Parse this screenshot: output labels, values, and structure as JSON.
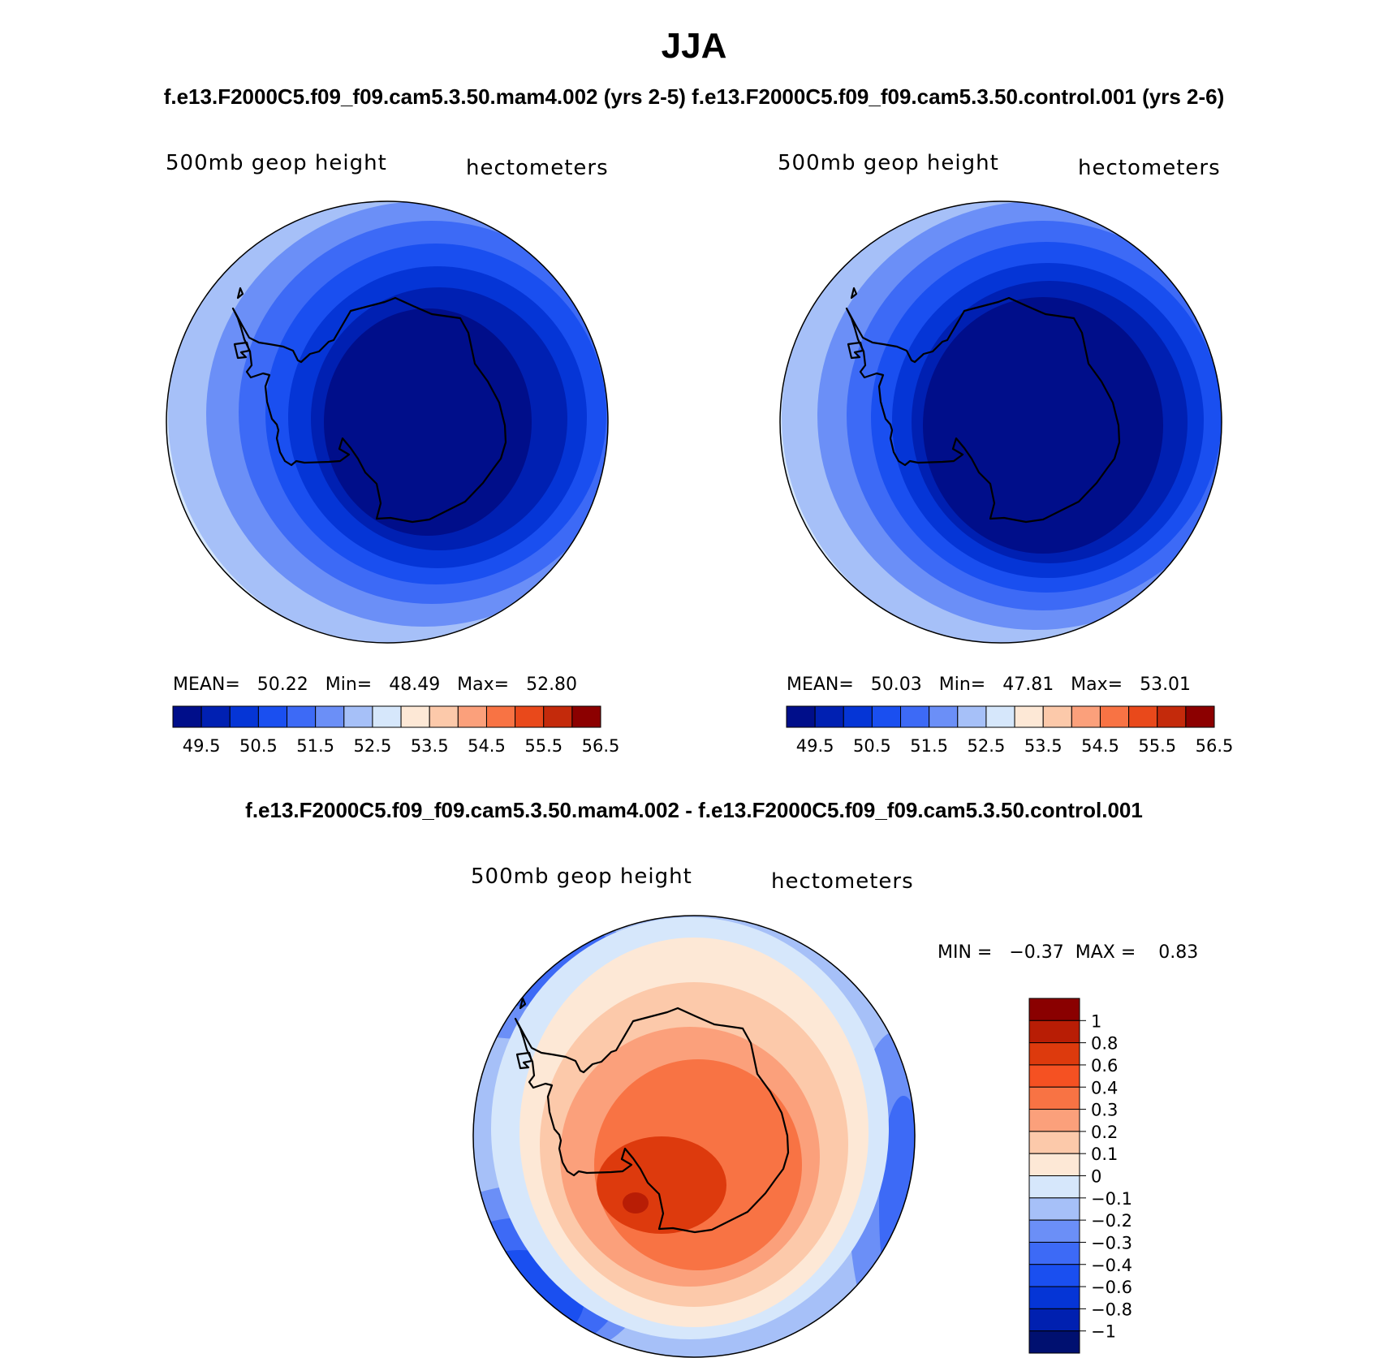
{
  "figure": {
    "title": "JJA",
    "subtitle": "f.e13.F2000C5.f09_f09.cam5.3.50.mam4.002 (yrs 2-5) f.e13.F2000C5.f09_f09.cam5.3.50.control.001 (yrs 2-6)",
    "diff_subtitle": "f.e13.F2000C5.f09_f09.cam5.3.50.mam4.002 - f.e13.F2000C5.f09_f09.cam5.3.50.control.001"
  },
  "panels": [
    {
      "variable": "500mb geop height",
      "units": "hectometers",
      "stats": "MEAN=   50.22   Min=   48.49   Max=   52.80"
    },
    {
      "variable": "500mb geop height",
      "units": "hectometers",
      "stats": "MEAN=   50.03   Min=   47.81   Max=   53.01"
    },
    {
      "variable": "500mb geop height",
      "units": "hectometers",
      "stats": "MIN =   −0.37  MAX =    0.83"
    }
  ],
  "colors": {
    "abs_scale": [
      "#000e8a",
      "#0020b2",
      "#0535d6",
      "#1a4ff0",
      "#3d6af6",
      "#6b8ff7",
      "#a6c0f8",
      "#d6e7fb",
      "#fde8d6",
      "#fcc9aa",
      "#fba07b",
      "#f87344",
      "#e9491b",
      "#c42a0b",
      "#8c0000"
    ],
    "diff_scale": [
      "#001070",
      "#0020b0",
      "#0535d6",
      "#1a4ff0",
      "#3d6af6",
      "#6b8ff7",
      "#a6c0f8",
      "#d6e7fb",
      "#fde8d6",
      "#fcc9aa",
      "#fba07b",
      "#f87344",
      "#f55122",
      "#dd3a0d",
      "#b81d05",
      "#8a0000"
    ]
  },
  "chart_data": [
    {
      "type": "heatmap",
      "projection": "south-polar-stereographic",
      "title": "500mb geop height",
      "units": "hectometers",
      "case": "f.e13.F2000C5.f09_f09.cam5.3.50.mam4.002 (yrs 2-5)",
      "mean": 50.22,
      "min": 48.49,
      "max": 52.8,
      "colorbar_ticks": [
        "49.5",
        "50.5",
        "51.5",
        "52.5",
        "53.5",
        "54.5",
        "55.5",
        "56.5"
      ],
      "contour_levels": [
        49.5,
        50.0,
        50.5,
        51.0,
        51.5,
        52.0,
        52.5,
        53.0,
        53.5,
        54.0,
        54.5,
        55.0,
        55.5,
        56.0,
        56.5
      ]
    },
    {
      "type": "heatmap",
      "projection": "south-polar-stereographic",
      "title": "500mb geop height",
      "units": "hectometers",
      "case": "f.e13.F2000C5.f09_f09.cam5.3.50.control.001 (yrs 2-6)",
      "mean": 50.03,
      "min": 47.81,
      "max": 53.01,
      "colorbar_ticks": [
        "49.5",
        "50.5",
        "51.5",
        "52.5",
        "53.5",
        "54.5",
        "55.5",
        "56.5"
      ],
      "contour_levels": [
        49.5,
        50.0,
        50.5,
        51.0,
        51.5,
        52.0,
        52.5,
        53.0,
        53.5,
        54.0,
        54.5,
        55.0,
        55.5,
        56.0,
        56.5
      ]
    },
    {
      "type": "heatmap",
      "projection": "south-polar-stereographic",
      "title": "500mb geop height",
      "units": "hectometers",
      "case": "mam4.002 - control.001",
      "min": -0.37,
      "max": 0.83,
      "colorbar_ticks": [
        "1",
        "0.8",
        "0.6",
        "0.4",
        "0.3",
        "0.2",
        "0.1",
        "0",
        "−0.1",
        "−0.2",
        "−0.3",
        "−0.4",
        "−0.6",
        "−0.8",
        "−1"
      ],
      "contour_levels": [
        -1,
        -0.8,
        -0.6,
        -0.4,
        -0.3,
        -0.2,
        -0.1,
        0,
        0.1,
        0.2,
        0.3,
        0.4,
        0.6,
        0.8,
        1
      ]
    }
  ]
}
